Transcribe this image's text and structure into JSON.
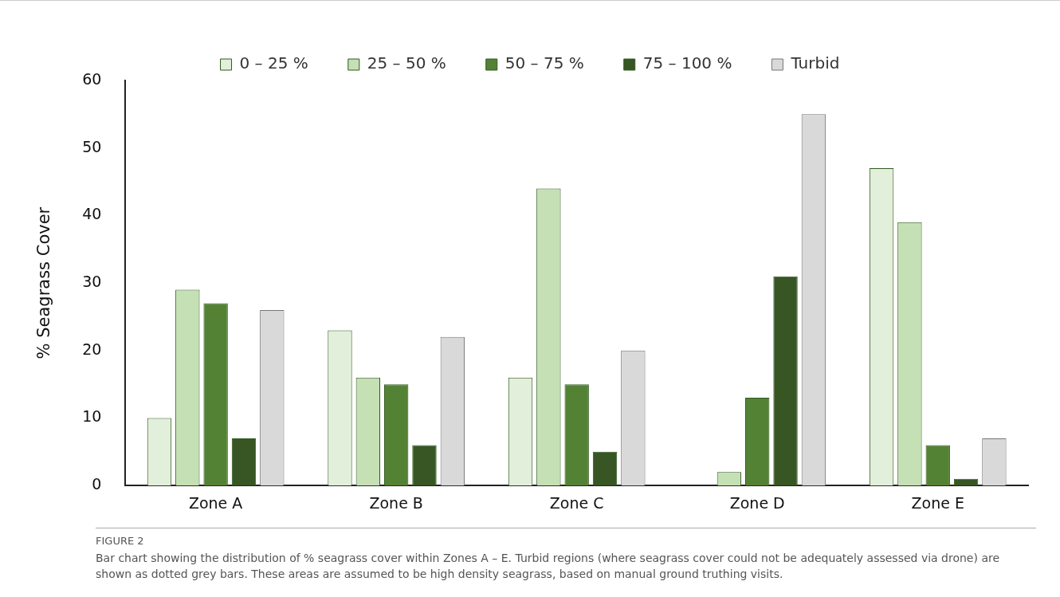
{
  "chart_data": {
    "type": "bar",
    "ylabel": "% Seagrass Cover",
    "categories": [
      "Zone A",
      "Zone B",
      "Zone C",
      "Zone D",
      "Zone E"
    ],
    "series": [
      {
        "name": "0 – 25 %",
        "color": "#e2efda",
        "values": [
          10,
          23,
          16,
          0,
          47
        ]
      },
      {
        "name": "25 – 50 %",
        "color": "#c5e0b4",
        "values": [
          29,
          16,
          44,
          2,
          39
        ]
      },
      {
        "name": "50 – 75 %",
        "color": "#548235",
        "values": [
          27,
          15,
          15,
          13,
          6
        ]
      },
      {
        "name": "75 – 100 %",
        "color": "#375623",
        "values": [
          7,
          6,
          5,
          31,
          1
        ]
      },
      {
        "name": "Turbid",
        "color": "#d9d9d9",
        "values": [
          26,
          22,
          20,
          55,
          7
        ]
      }
    ],
    "ylim": [
      0,
      60
    ],
    "yticks": [
      0,
      10,
      20,
      30,
      40,
      50,
      60
    ],
    "grid": false,
    "legend": "top",
    "annotations": [
      "FIGURE 2",
      "Bar chart showing the distribution of % seagrass cover within Zones A – E. Turbid regions (where seagrass cover could not be adequately assessed via drone) are shown as dotted grey bars. These areas are assumed to be high density seagrass, based on manual ground truthing visits."
    ]
  }
}
